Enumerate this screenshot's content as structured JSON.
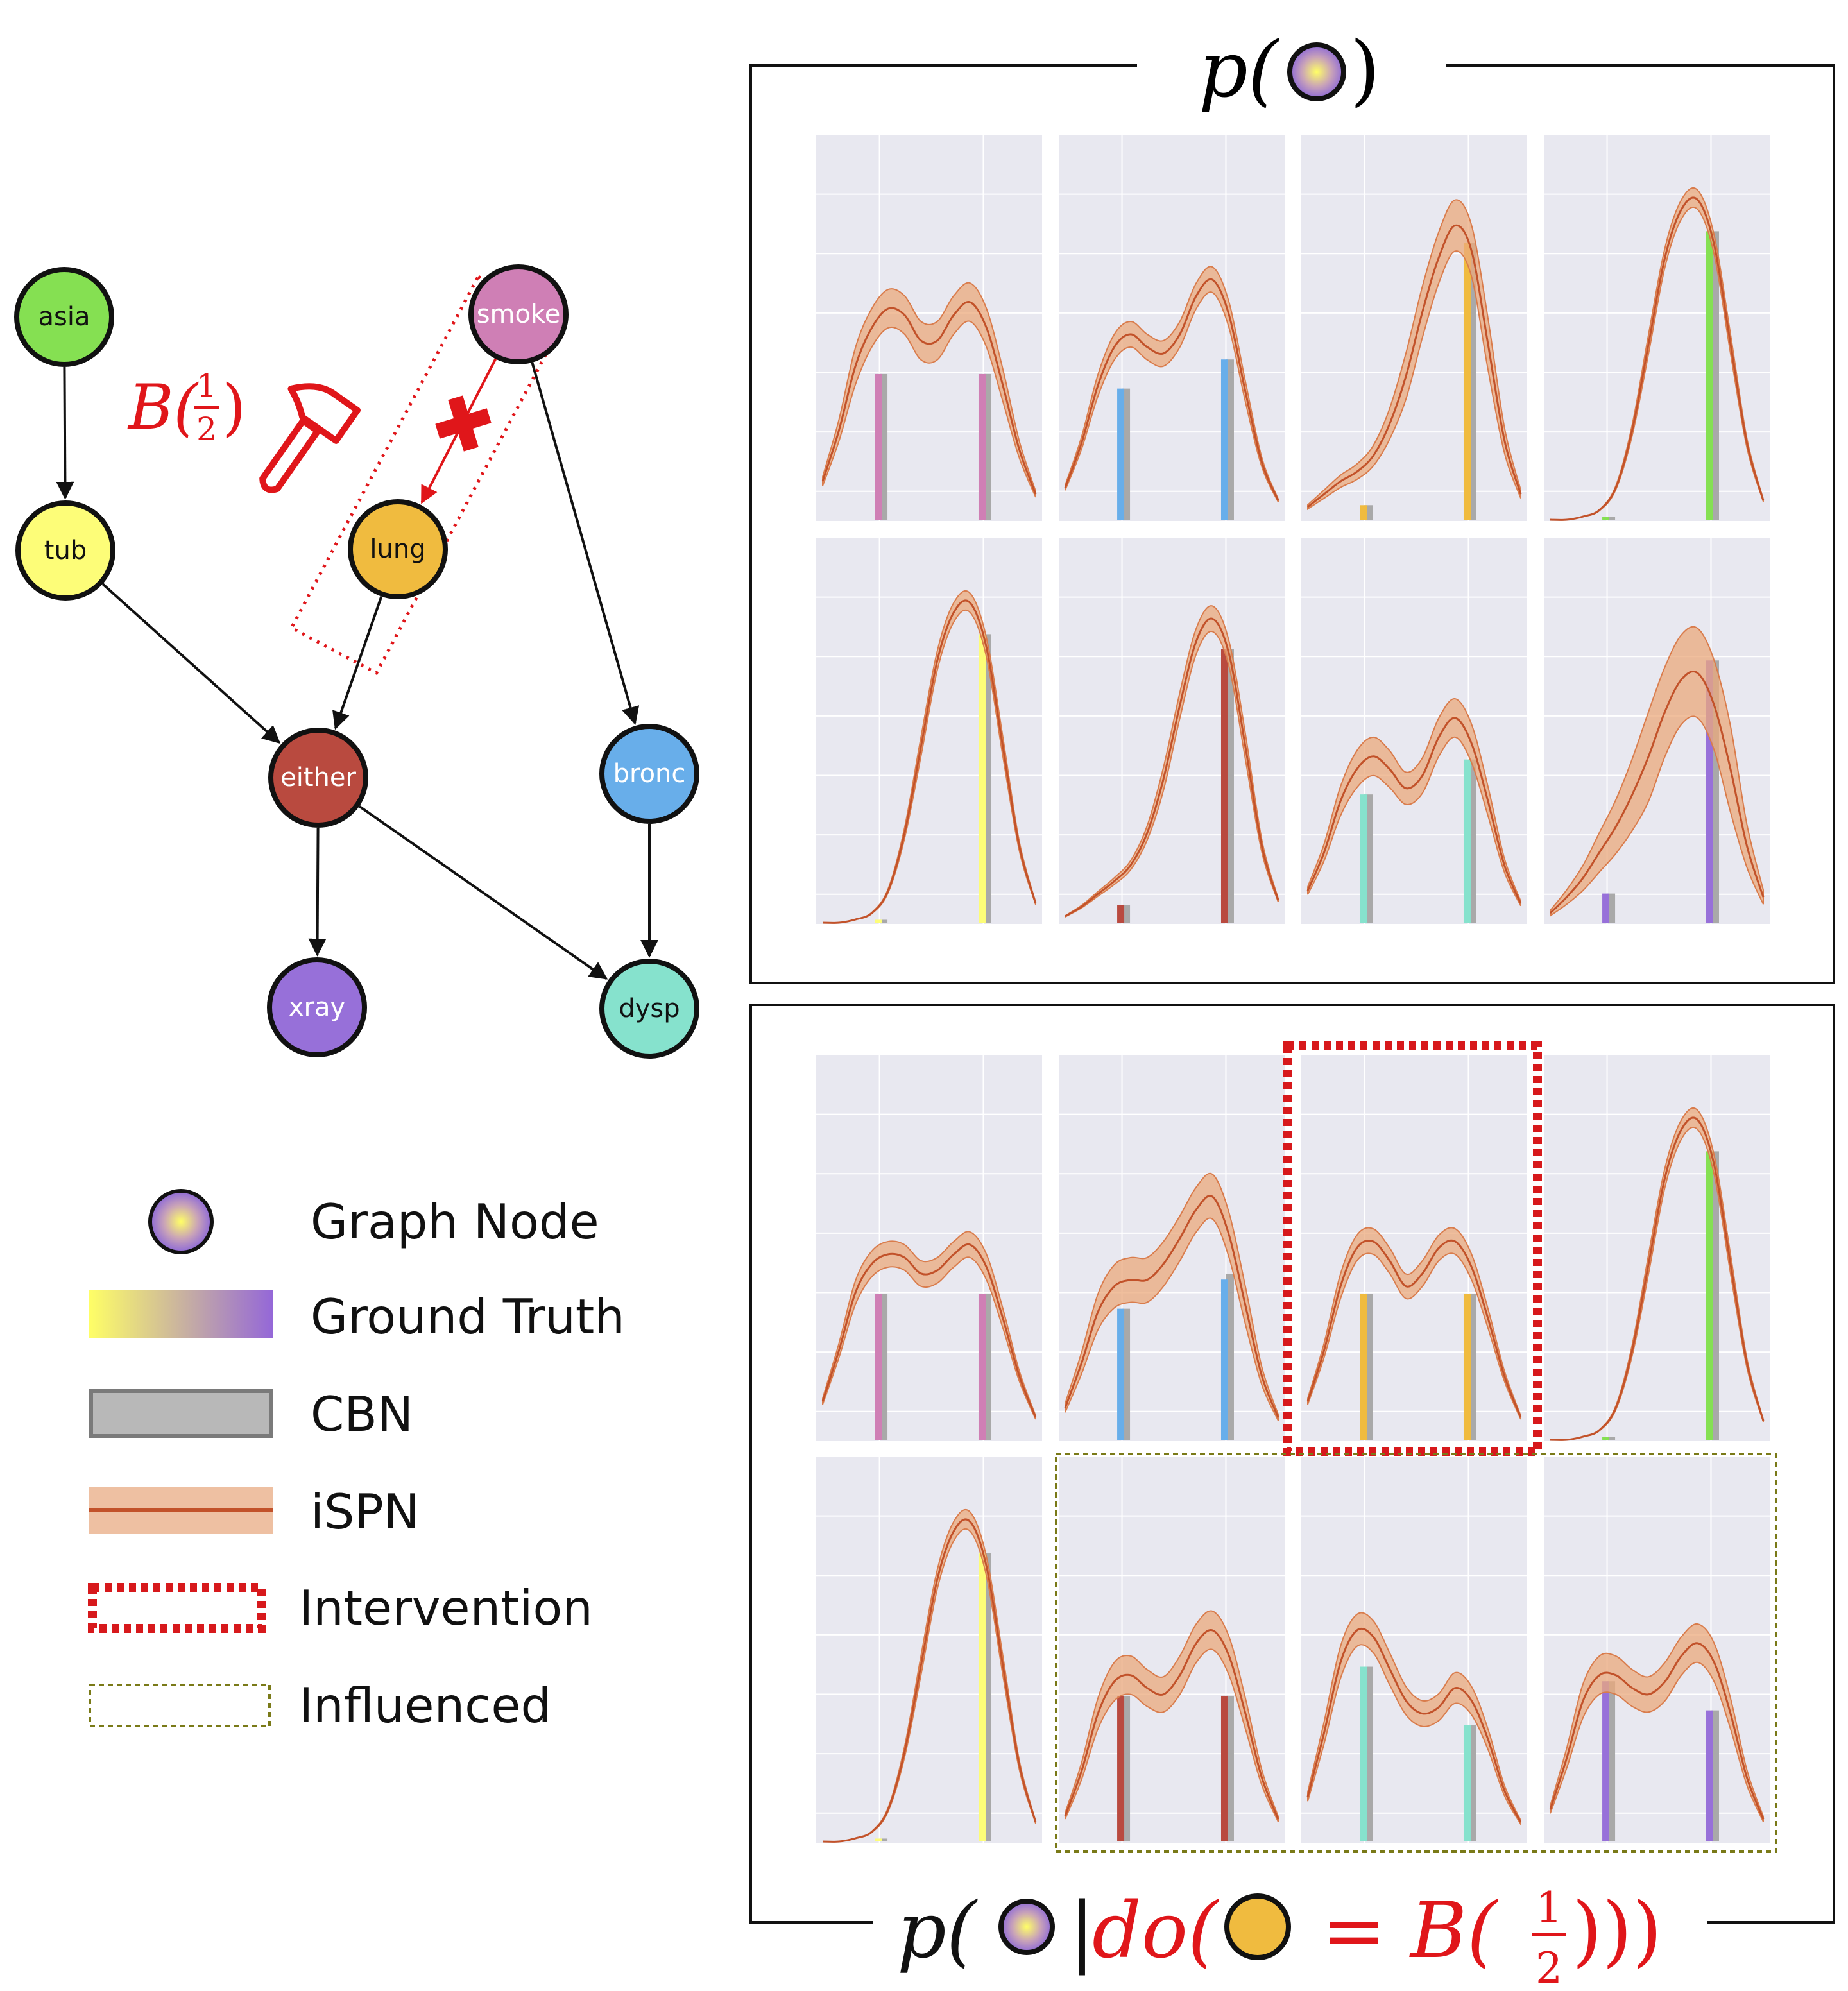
{
  "graph": {
    "nodes": [
      {
        "id": "asia",
        "label": "asia",
        "color": "#85e052",
        "text": "#111111"
      },
      {
        "id": "smoke",
        "label": "smoke",
        "color": "#cf7fb5",
        "text": "#ffffff"
      },
      {
        "id": "tub",
        "label": "tub",
        "color": "#fdfd78",
        "text": "#111111"
      },
      {
        "id": "lung",
        "label": "lung",
        "color": "#f0bb3f",
        "text": "#111111"
      },
      {
        "id": "either",
        "label": "either",
        "color": "#b94a3f",
        "text": "#ffffff"
      },
      {
        "id": "bronc",
        "label": "bronc",
        "color": "#68aeea",
        "text": "#ffffff"
      },
      {
        "id": "xray",
        "label": "xray",
        "color": "#9770d9",
        "text": "#ffffff"
      },
      {
        "id": "dysp",
        "label": "dysp",
        "color": "#86e2cd",
        "text": "#111111"
      }
    ],
    "edges": [
      [
        "asia",
        "tub"
      ],
      [
        "smoke",
        "lung"
      ],
      [
        "smoke",
        "bronc"
      ],
      [
        "tub",
        "either"
      ],
      [
        "lung",
        "either"
      ],
      [
        "either",
        "xray"
      ],
      [
        "either",
        "dysp"
      ],
      [
        "bronc",
        "dysp"
      ]
    ],
    "intervened_edge": [
      "smoke",
      "lung"
    ],
    "intervention_label": {
      "prefix": "B(",
      "num": "1",
      "den": "2",
      "suffix": ")"
    },
    "intervention_color": "#e0161a"
  },
  "legend": {
    "graph_node": "Graph Node",
    "ground_truth": "Ground Truth",
    "cbn": "CBN",
    "ispn": "iSPN",
    "intervention": "Intervention",
    "influenced": "Influenced"
  },
  "top_panel": {
    "title_prefix": "p(",
    "title_suffix": ")"
  },
  "bottom_panel": {
    "title_p": "p(",
    "title_bar": "|",
    "title_do": "do(",
    "title_eq": "=",
    "title_B": "B(",
    "num": "1",
    "den": "2",
    "title_close": ")))"
  },
  "colors": {
    "ispn_line": "#c2522a",
    "ispn_band": "#eba97c",
    "cbn": "#a9a9a9",
    "plot_bg": "#e8e8f0",
    "intervention_box": "#d7191c",
    "influenced_box": "#7a7a18"
  },
  "chart_data": [
    {
      "type": "bar",
      "title": "p(node)",
      "panels": [
        {
          "node": "smoke",
          "color": "#cf7fb5",
          "categories": [
            0,
            1
          ],
          "ground_truth": [
            0.5,
            0.5
          ],
          "cbn": [
            0.5,
            0.5
          ],
          "ispn_curve": [
            0.12,
            0.28,
            0.48,
            0.6,
            0.66,
            0.64,
            0.56,
            0.56,
            0.64,
            0.68,
            0.6,
            0.42,
            0.22,
            0.08
          ],
          "ispn_band_width": 0.06
        },
        {
          "node": "bronc",
          "color": "#68aeea",
          "categories": [
            0,
            1
          ],
          "ground_truth": [
            0.45,
            0.55
          ],
          "cbn": [
            0.45,
            0.55
          ],
          "ispn_curve": [
            0.1,
            0.24,
            0.42,
            0.54,
            0.58,
            0.54,
            0.52,
            0.58,
            0.7,
            0.75,
            0.64,
            0.4,
            0.18,
            0.06
          ],
          "ispn_band_width": 0.04
        },
        {
          "node": "lung",
          "color": "#f0bb3f",
          "categories": [
            0,
            1
          ],
          "ground_truth": [
            0.05,
            0.95
          ],
          "cbn": [
            0.05,
            0.95
          ],
          "ispn_curve": [
            0.04,
            0.08,
            0.12,
            0.15,
            0.2,
            0.3,
            0.45,
            0.65,
            0.82,
            0.92,
            0.84,
            0.55,
            0.25,
            0.08
          ],
          "ispn_band_width": 0.08
        },
        {
          "node": "asia",
          "color": "#85e052",
          "categories": [
            0,
            1
          ],
          "ground_truth": [
            0.01,
            0.99
          ],
          "cbn": [
            0.01,
            0.99
          ],
          "ispn_curve": [
            0.0,
            0.0,
            0.01,
            0.03,
            0.1,
            0.28,
            0.55,
            0.82,
            0.97,
            1.0,
            0.86,
            0.55,
            0.24,
            0.06
          ],
          "ispn_band_width": 0.03
        },
        {
          "node": "tub",
          "color": "#fdfd78",
          "categories": [
            0,
            1
          ],
          "ground_truth": [
            0.01,
            0.99
          ],
          "cbn": [
            0.01,
            0.99
          ],
          "ispn_curve": [
            0.0,
            0.0,
            0.01,
            0.03,
            0.1,
            0.28,
            0.55,
            0.82,
            0.97,
            1.0,
            0.86,
            0.55,
            0.24,
            0.06
          ],
          "ispn_band_width": 0.03
        },
        {
          "node": "either",
          "color": "#b94a3f",
          "categories": [
            0,
            1
          ],
          "ground_truth": [
            0.06,
            0.94
          ],
          "cbn": [
            0.06,
            0.94
          ],
          "ispn_curve": [
            0.02,
            0.05,
            0.09,
            0.13,
            0.18,
            0.28,
            0.45,
            0.68,
            0.88,
            0.95,
            0.84,
            0.55,
            0.24,
            0.07
          ],
          "ispn_band_width": 0.04
        },
        {
          "node": "dysp",
          "color": "#86e2cd",
          "categories": [
            0,
            1
          ],
          "ground_truth": [
            0.44,
            0.56
          ],
          "cbn": [
            0.44,
            0.56
          ],
          "ispn_curve": [
            0.1,
            0.22,
            0.38,
            0.48,
            0.52,
            0.48,
            0.42,
            0.46,
            0.58,
            0.64,
            0.56,
            0.38,
            0.18,
            0.06
          ],
          "ispn_band_width": 0.06
        },
        {
          "node": "xray",
          "color": "#9770d9",
          "categories": [
            0,
            1
          ],
          "ground_truth": [
            0.1,
            0.9
          ],
          "cbn": [
            0.1,
            0.9
          ],
          "ispn_curve": [
            0.03,
            0.08,
            0.14,
            0.22,
            0.3,
            0.4,
            0.52,
            0.66,
            0.76,
            0.78,
            0.68,
            0.48,
            0.24,
            0.08
          ],
          "ispn_band_width": 0.14
        }
      ]
    },
    {
      "type": "bar",
      "title": "p(node | do(lung = B(1/2)))",
      "panels": [
        {
          "node": "smoke",
          "color": "#cf7fb5",
          "categories": [
            0,
            1
          ],
          "ground_truth": [
            0.5,
            0.5
          ],
          "cbn": [
            0.5,
            0.5
          ],
          "ispn_curve": [
            0.12,
            0.28,
            0.46,
            0.55,
            0.58,
            0.57,
            0.52,
            0.53,
            0.58,
            0.61,
            0.54,
            0.38,
            0.2,
            0.07
          ],
          "ispn_band_width": 0.04
        },
        {
          "node": "bronc",
          "color": "#68aeea",
          "categories": [
            0,
            1
          ],
          "ground_truth": [
            0.45,
            0.55
          ],
          "cbn": [
            0.45,
            0.57
          ],
          "ispn_curve": [
            0.1,
            0.24,
            0.4,
            0.48,
            0.5,
            0.5,
            0.55,
            0.63,
            0.72,
            0.76,
            0.64,
            0.42,
            0.2,
            0.07
          ],
          "ispn_band_width": 0.07
        },
        {
          "node": "lung",
          "color": "#f0bb3f",
          "categories": [
            0,
            1
          ],
          "ground_truth": [
            0.5,
            0.5
          ],
          "cbn": [
            0.5,
            0.5
          ],
          "ispn_curve": [
            0.12,
            0.28,
            0.48,
            0.6,
            0.62,
            0.56,
            0.48,
            0.52,
            0.6,
            0.62,
            0.54,
            0.38,
            0.2,
            0.07
          ],
          "ispn_band_width": 0.04
        },
        {
          "node": "asia",
          "color": "#85e052",
          "categories": [
            0,
            1
          ],
          "ground_truth": [
            0.01,
            0.99
          ],
          "cbn": [
            0.01,
            0.99
          ],
          "ispn_curve": [
            0.0,
            0.0,
            0.01,
            0.03,
            0.1,
            0.28,
            0.55,
            0.82,
            0.97,
            1.0,
            0.86,
            0.55,
            0.24,
            0.06
          ],
          "ispn_band_width": 0.03
        },
        {
          "node": "tub",
          "color": "#fdfd78",
          "categories": [
            0,
            1
          ],
          "ground_truth": [
            0.01,
            0.99
          ],
          "cbn": [
            0.01,
            0.99
          ],
          "ispn_curve": [
            0.0,
            0.0,
            0.01,
            0.03,
            0.1,
            0.28,
            0.55,
            0.82,
            0.97,
            1.0,
            0.86,
            0.55,
            0.24,
            0.06
          ],
          "ispn_band_width": 0.03
        },
        {
          "node": "either",
          "color": "#b94a3f",
          "categories": [
            0,
            1
          ],
          "ground_truth": [
            0.5,
            0.5
          ],
          "cbn": [
            0.5,
            0.5
          ],
          "ispn_curve": [
            0.08,
            0.22,
            0.4,
            0.5,
            0.52,
            0.48,
            0.46,
            0.52,
            0.62,
            0.66,
            0.58,
            0.4,
            0.2,
            0.07
          ],
          "ispn_band_width": 0.06
        },
        {
          "node": "dysp",
          "color": "#86e2cd",
          "categories": [
            0,
            1
          ],
          "ground_truth": [
            0.6,
            0.4
          ],
          "cbn": [
            0.6,
            0.4
          ],
          "ispn_curve": [
            0.14,
            0.34,
            0.56,
            0.66,
            0.64,
            0.54,
            0.44,
            0.4,
            0.42,
            0.48,
            0.44,
            0.32,
            0.16,
            0.06
          ],
          "ispn_band_width": 0.05
        },
        {
          "node": "xray",
          "color": "#9770d9",
          "categories": [
            0,
            1
          ],
          "ground_truth": [
            0.55,
            0.45
          ],
          "cbn": [
            0.55,
            0.45
          ],
          "ispn_curve": [
            0.1,
            0.26,
            0.44,
            0.52,
            0.52,
            0.48,
            0.46,
            0.5,
            0.58,
            0.62,
            0.56,
            0.4,
            0.2,
            0.07
          ],
          "ispn_band_width": 0.06
        }
      ]
    }
  ]
}
